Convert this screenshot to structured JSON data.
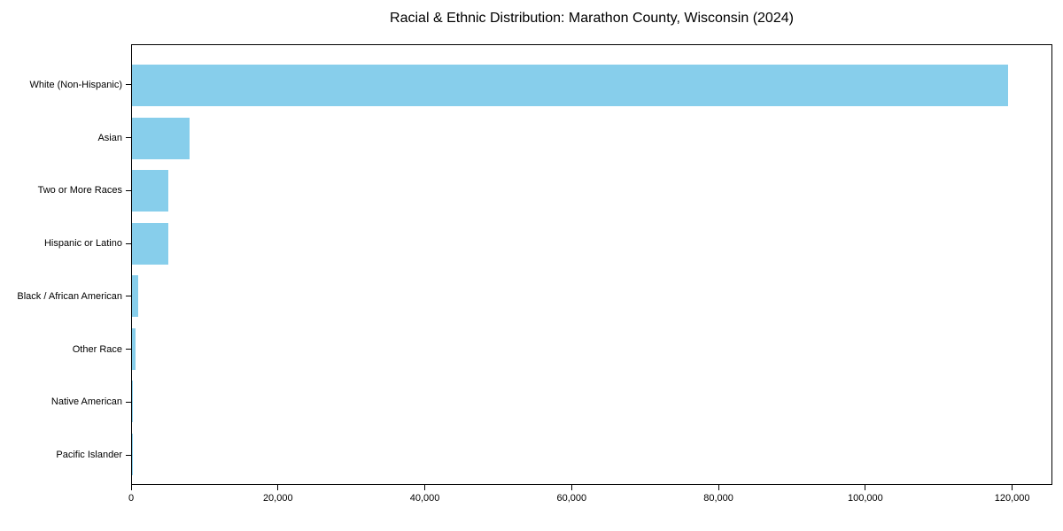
{
  "chart_data": {
    "type": "bar",
    "orientation": "horizontal",
    "title": "Racial & Ethnic Distribution: Marathon County, Wisconsin (2024)",
    "categories": [
      "White (Non-Hispanic)",
      "Asian",
      "Two or More Races",
      "Hispanic or Latino",
      "Black / African American",
      "Other Race",
      "Native American",
      "Pacific Islander"
    ],
    "values": [
      119500,
      7900,
      5000,
      4900,
      900,
      450,
      150,
      40
    ],
    "xlabel": "",
    "ylabel": "",
    "xlim": [
      0,
      125475
    ],
    "xticks": [
      {
        "value": 0,
        "label": "0"
      },
      {
        "value": 20000,
        "label": "20,000"
      },
      {
        "value": 40000,
        "label": "40,000"
      },
      {
        "value": 60000,
        "label": "60,000"
      },
      {
        "value": 80000,
        "label": "80,000"
      },
      {
        "value": 100000,
        "label": "100,000"
      },
      {
        "value": 120000,
        "label": "120,000"
      }
    ],
    "grid": false,
    "legend": null,
    "bar_color": "#87CEEB",
    "axis_color": "#000000",
    "background_color": "#ffffff"
  }
}
